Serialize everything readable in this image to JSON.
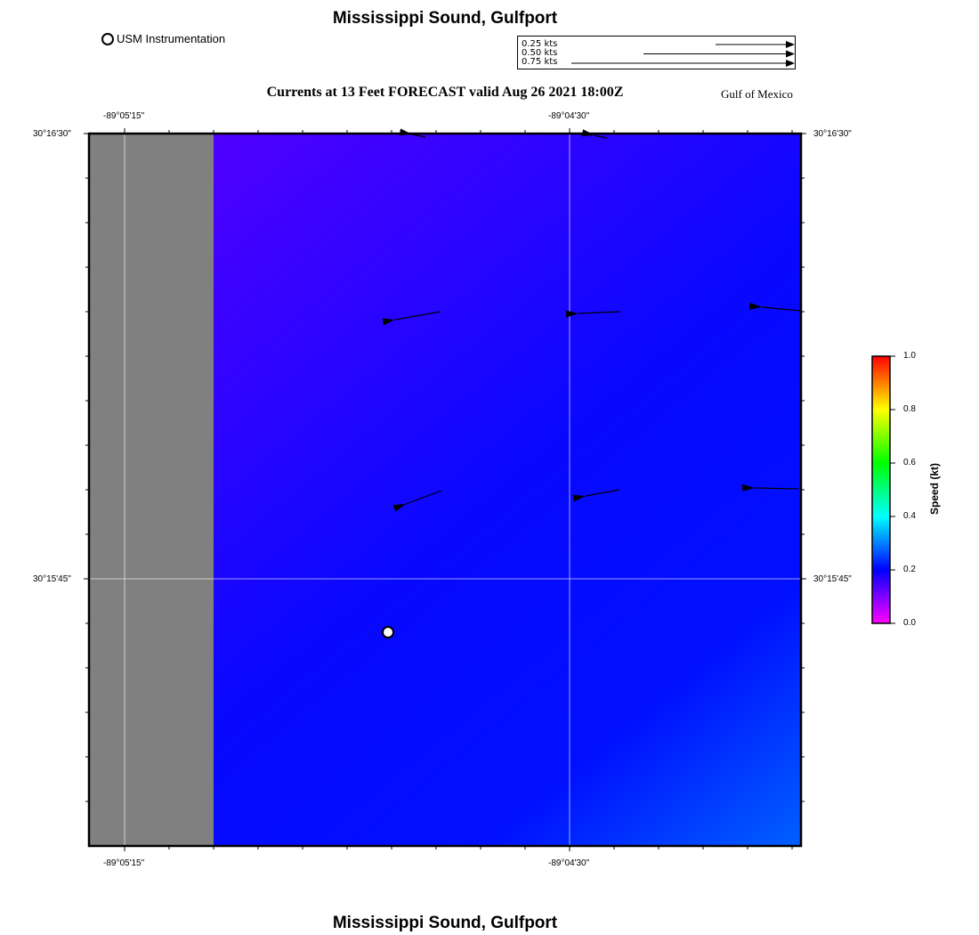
{
  "header": {
    "title": "Mississippi Sound, Gulfport",
    "instrument_legend": "USM Instrumentation",
    "subtitle": "Currents at 13 Feet FORECAST valid Aug 26 2021 18:00Z",
    "region": "Gulf of Mexico"
  },
  "speed_scale": {
    "entries": [
      {
        "label": "0.25 kts",
        "speed": 0.25
      },
      {
        "label": "0.50 kts",
        "speed": 0.5
      },
      {
        "label": "0.75 kts",
        "speed": 0.75
      }
    ]
  },
  "map": {
    "lon_labels": [
      "-89°05'15\"",
      "-89°04'30\""
    ],
    "lat_labels": [
      "30°16'30\"",
      "30°15'45\""
    ],
    "land_color": "#808080",
    "vector_color": "#000000",
    "station_marker": "usm-station-circle"
  },
  "colorbar": {
    "title": "Speed (kt)",
    "ticks": [
      "0.0",
      "0.2",
      "0.4",
      "0.6",
      "0.8",
      "1.0"
    ],
    "range": [
      0.0,
      1.0
    ],
    "colors": [
      "#ff00ff",
      "#0000ff",
      "#00ffff",
      "#00ff00",
      "#ffff00",
      "#ff0000"
    ]
  },
  "footer": {
    "title": "Mississippi Sound, Gulfport"
  }
}
